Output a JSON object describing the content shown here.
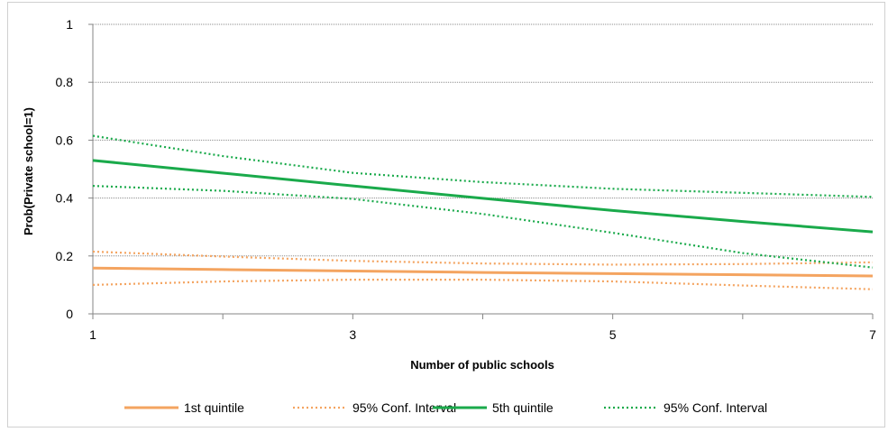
{
  "chart_data": {
    "type": "line",
    "title": "",
    "xlabel": "Number of public schools",
    "ylabel": "Prob(Private school=1)",
    "xlim": [
      1,
      7
    ],
    "ylim": [
      0,
      1
    ],
    "x_ticks": [
      1,
      3,
      5,
      7
    ],
    "y_ticks": [
      0,
      0.2,
      0.4,
      0.6,
      0.8,
      1
    ],
    "y_tick_labels": [
      "0",
      "0.2",
      "0.4",
      "0.6",
      "0.8",
      "1"
    ],
    "x_tick_labels": [
      "1",
      "3",
      "5",
      "7"
    ],
    "grid": "horizontal",
    "legend_position": "bottom",
    "x": [
      1,
      2,
      3,
      4,
      5,
      6,
      7
    ],
    "series": [
      {
        "name": "1st quintile",
        "style": "solid",
        "color": "#f4a460",
        "values": [
          0.158,
          0.153,
          0.148,
          0.143,
          0.139,
          0.135,
          0.131
        ]
      },
      {
        "name": "95% Conf. Interval",
        "style": "dotted",
        "color": "#f4a460",
        "values": [
          0.215,
          0.198,
          0.183,
          0.174,
          0.17,
          0.172,
          0.178
        ]
      },
      {
        "name": "",
        "style": "dotted",
        "color": "#f4a460",
        "values": [
          0.1,
          0.112,
          0.118,
          0.118,
          0.112,
          0.098,
          0.085
        ]
      },
      {
        "name": "5th quintile",
        "style": "solid",
        "color": "#1aaa4b",
        "values": [
          0.53,
          0.486,
          0.442,
          0.399,
          0.357,
          0.319,
          0.283
        ]
      },
      {
        "name": "95% Conf. Interval",
        "style": "dotted",
        "color": "#1aaa4b",
        "values": [
          0.615,
          0.545,
          0.487,
          0.455,
          0.432,
          0.418,
          0.404
        ]
      },
      {
        "name": "",
        "style": "dotted",
        "color": "#1aaa4b",
        "values": [
          0.442,
          0.425,
          0.397,
          0.345,
          0.28,
          0.21,
          0.16
        ]
      }
    ]
  },
  "legend": {
    "items": [
      {
        "label": "1st quintile",
        "style": "solid",
        "color": "#f4a460"
      },
      {
        "label": "95% Conf. Interval",
        "style": "dotted",
        "color": "#f4a460"
      },
      {
        "label": "5th quintile",
        "style": "solid",
        "color": "#1aaa4b"
      },
      {
        "label": "95% Conf. Interval",
        "style": "dotted",
        "color": "#1aaa4b"
      }
    ]
  }
}
